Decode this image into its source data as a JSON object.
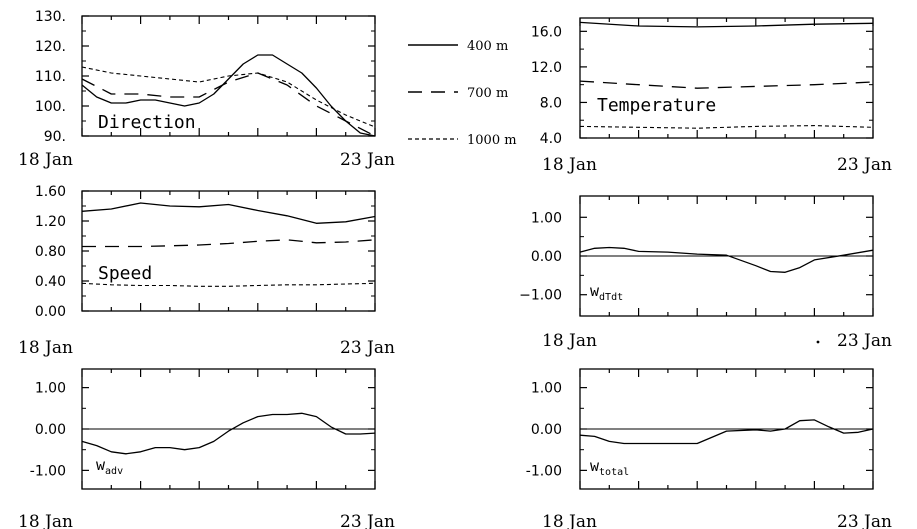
{
  "legend": {
    "items": [
      {
        "label": "400 m",
        "dash": "solid"
      },
      {
        "label": "700 m",
        "dash": "long-dash"
      },
      {
        "label": "1000 m",
        "dash": "short-dash"
      }
    ]
  },
  "chart_data": [
    {
      "id": "direction",
      "type": "line",
      "title": "Direction",
      "xlim": [
        0,
        5
      ],
      "xtick_labels": [
        "18 Jan",
        "23 Jan"
      ],
      "ylim": [
        90,
        130
      ],
      "yticks": [
        "130.",
        "120.",
        "110.",
        "100.",
        "90."
      ],
      "series": [
        {
          "name": "400 m",
          "dash": "solid",
          "x": [
            0,
            0.25,
            0.5,
            0.75,
            1,
            1.25,
            1.5,
            1.75,
            2,
            2.25,
            2.5,
            2.75,
            3,
            3.25,
            3.5,
            3.75,
            4,
            4.25,
            4.5,
            4.75,
            5
          ],
          "y": [
            107,
            103,
            101,
            101,
            102,
            102,
            101,
            100,
            101,
            104,
            109,
            114,
            117,
            117,
            114,
            111,
            106,
            100,
            95,
            91,
            90
          ]
        },
        {
          "name": "700 m",
          "dash": "long-dash",
          "x": [
            0,
            0.5,
            1,
            1.5,
            2,
            2.5,
            3,
            3.5,
            4,
            4.5,
            5
          ],
          "y": [
            109,
            104,
            104,
            103,
            103,
            108,
            111,
            107,
            100,
            95,
            90
          ]
        },
        {
          "name": "1000 m",
          "dash": "short-dash",
          "x": [
            0,
            0.5,
            1,
            1.5,
            2,
            2.5,
            3,
            3.5,
            4,
            4.5,
            5
          ],
          "y": [
            113,
            111,
            110,
            109,
            108,
            110,
            111,
            108,
            102,
            97,
            93
          ]
        }
      ]
    },
    {
      "id": "temperature",
      "type": "line",
      "title": "Temperature",
      "xlim": [
        0,
        5
      ],
      "xtick_labels": [
        "18 Jan",
        "23 Jan"
      ],
      "ylim": [
        4,
        17.5
      ],
      "yticks": [
        "16.0",
        "12.0",
        "8.0",
        "4.0"
      ],
      "series": [
        {
          "name": "400 m",
          "dash": "solid",
          "x": [
            0,
            1,
            2,
            3,
            4,
            5
          ],
          "y": [
            17.0,
            16.6,
            16.5,
            16.6,
            16.8,
            16.9
          ]
        },
        {
          "name": "700 m",
          "dash": "long-dash",
          "x": [
            0,
            1,
            2,
            3,
            4,
            5
          ],
          "y": [
            10.4,
            10.0,
            9.6,
            9.8,
            10.0,
            10.3
          ]
        },
        {
          "name": "1000 m",
          "dash": "short-dash",
          "x": [
            0,
            1,
            2,
            3,
            4,
            5
          ],
          "y": [
            5.3,
            5.2,
            5.1,
            5.3,
            5.4,
            5.2
          ]
        }
      ]
    },
    {
      "id": "speed",
      "type": "line",
      "title": "Speed",
      "xlim": [
        0,
        5
      ],
      "xtick_labels": [
        "18 Jan",
        "23 Jan"
      ],
      "ylim": [
        0,
        1.6
      ],
      "yticks": [
        "1.60",
        "1.20",
        "0.80",
        "0.40",
        "0.00"
      ],
      "series": [
        {
          "name": "400 m",
          "dash": "solid",
          "x": [
            0,
            0.5,
            1,
            1.5,
            2,
            2.5,
            3,
            3.5,
            4,
            4.5,
            5
          ],
          "y": [
            1.33,
            1.36,
            1.44,
            1.4,
            1.39,
            1.42,
            1.34,
            1.27,
            1.17,
            1.19,
            1.26
          ]
        },
        {
          "name": "700 m",
          "dash": "long-dash",
          "x": [
            0,
            0.5,
            1,
            1.5,
            2,
            2.5,
            3,
            3.5,
            4,
            4.5,
            5
          ],
          "y": [
            0.86,
            0.86,
            0.86,
            0.87,
            0.88,
            0.9,
            0.93,
            0.95,
            0.91,
            0.92,
            0.95
          ]
        },
        {
          "name": "1000 m",
          "dash": "short-dash",
          "x": [
            0,
            0.5,
            1,
            1.5,
            2,
            2.5,
            3,
            3.5,
            4,
            4.5,
            5
          ],
          "y": [
            0.37,
            0.35,
            0.34,
            0.34,
            0.33,
            0.33,
            0.34,
            0.35,
            0.35,
            0.36,
            0.37
          ]
        }
      ]
    },
    {
      "id": "wdTdt",
      "type": "line",
      "title": "w",
      "title_sub": "dTdt",
      "xlim": [
        0,
        5
      ],
      "xtick_labels": [
        "18 Jan",
        "23 Jan"
      ],
      "ylim": [
        -1.55,
        1.55
      ],
      "yticks": [
        "1.00",
        "0.00",
        "−1.00"
      ],
      "series": [
        {
          "name": "",
          "dash": "solid",
          "x": [
            0,
            0.25,
            0.5,
            0.75,
            1,
            1.5,
            2,
            2.5,
            3,
            3.25,
            3.5,
            3.75,
            4,
            4.5,
            5
          ],
          "y": [
            0.1,
            0.2,
            0.22,
            0.2,
            0.12,
            0.1,
            0.05,
            0.02,
            -0.25,
            -0.4,
            -0.42,
            -0.3,
            -0.1,
            0.02,
            0.15
          ]
        }
      ]
    },
    {
      "id": "wadv",
      "type": "line",
      "title": "w",
      "title_sub": "adv",
      "xlim": [
        0,
        5
      ],
      "xtick_labels": [
        "18 Jan",
        "23 Jan"
      ],
      "ylim": [
        -1.45,
        1.45
      ],
      "yticks": [
        "1.00",
        "0.00",
        "-1.00"
      ],
      "series": [
        {
          "name": "",
          "dash": "solid",
          "x": [
            0,
            0.25,
            0.5,
            0.75,
            1,
            1.25,
            1.5,
            1.75,
            2,
            2.25,
            2.5,
            2.75,
            3,
            3.25,
            3.5,
            3.75,
            4,
            4.25,
            4.5,
            4.75,
            5
          ],
          "y": [
            -0.3,
            -0.4,
            -0.55,
            -0.6,
            -0.55,
            -0.45,
            -0.45,
            -0.5,
            -0.45,
            -0.3,
            -0.05,
            0.15,
            0.3,
            0.35,
            0.35,
            0.38,
            0.3,
            0.05,
            -0.12,
            -0.12,
            -0.1
          ]
        }
      ]
    },
    {
      "id": "wtotal",
      "type": "line",
      "title": "w",
      "title_sub": "total",
      "xlim": [
        0,
        5
      ],
      "xtick_labels": [
        "18 Jan",
        "23 Jan"
      ],
      "ylim": [
        -1.45,
        1.45
      ],
      "yticks": [
        "1.00",
        "0.00",
        "-1.00"
      ],
      "series": [
        {
          "name": "",
          "dash": "solid",
          "x": [
            0,
            0.25,
            0.5,
            0.75,
            1,
            1.5,
            2,
            2.5,
            3,
            3.25,
            3.5,
            3.75,
            4,
            4.25,
            4.5,
            4.75,
            5
          ],
          "y": [
            -0.15,
            -0.18,
            -0.3,
            -0.35,
            -0.35,
            -0.35,
            -0.35,
            -0.05,
            -0.02,
            -0.05,
            0.0,
            0.2,
            0.22,
            0.05,
            -0.1,
            -0.08,
            0.0
          ]
        }
      ]
    }
  ]
}
